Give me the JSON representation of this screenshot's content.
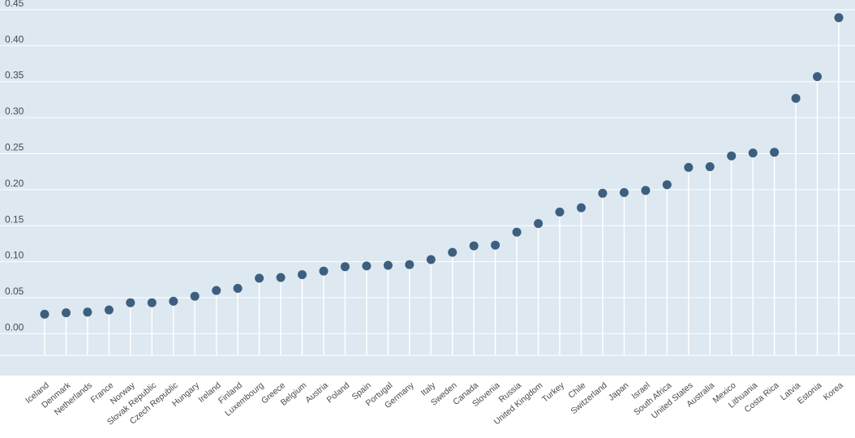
{
  "chart_data": {
    "type": "scatter",
    "style": "lollipop",
    "title": "",
    "xlabel": "",
    "ylabel": "",
    "ylim": [
      -0.03,
      0.45
    ],
    "yticks": [
      0.45,
      0.4,
      0.35,
      0.3,
      0.25,
      0.2,
      0.15,
      0.1,
      0.05,
      0.0
    ],
    "ytick_labels": [
      "0.45",
      "0.40",
      "0.35",
      "0.30",
      "0.25",
      "0.20",
      "0.15",
      "0.10",
      "0.05",
      "0.00"
    ],
    "grid": true,
    "legend": "none",
    "colors": {
      "plot_background": "#dde8f0",
      "gridline": "#ffffff",
      "marker": "#3d5f7f",
      "stem": "#ffffff",
      "tick_text": "#4a4a4a"
    },
    "categories": [
      "Iceland",
      "Denmark",
      "Netherlands",
      "France",
      "Norway",
      "Slovak Republic",
      "Czech Republic",
      "Hungary",
      "Ireland",
      "Finland",
      "Luxembourg",
      "Greece",
      "Belgium",
      "Austria",
      "Poland",
      "Spain",
      "Portugal",
      "Germany",
      "Italy",
      "Sweden",
      "Canada",
      "Slovenia",
      "Russia",
      "United Kingdom",
      "Turkey",
      "Chile",
      "Switzerland",
      "Japan",
      "Israel",
      "South Africa",
      "United States",
      "Australia",
      "Mexico",
      "Lithuania",
      "Costa Rica",
      "Latvia",
      "Estonia",
      "Korea"
    ],
    "values": [
      0.027,
      0.029,
      0.03,
      0.033,
      0.043,
      0.043,
      0.045,
      0.052,
      0.06,
      0.063,
      0.077,
      0.078,
      0.082,
      0.087,
      0.093,
      0.094,
      0.095,
      0.096,
      0.103,
      0.113,
      0.122,
      0.123,
      0.141,
      0.153,
      0.169,
      0.175,
      0.195,
      0.196,
      0.199,
      0.207,
      0.231,
      0.232,
      0.247,
      0.251,
      0.252,
      0.327,
      0.357,
      0.439
    ]
  }
}
